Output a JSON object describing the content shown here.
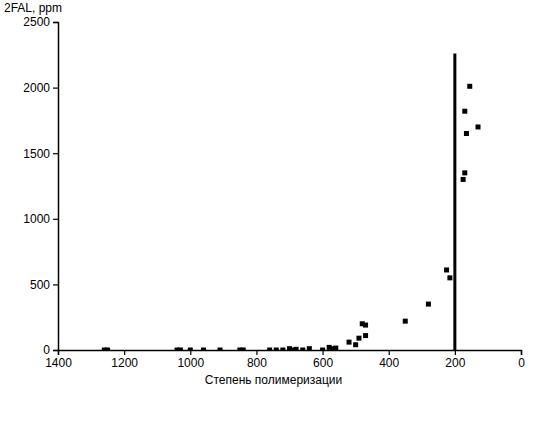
{
  "chart_data": {
    "type": "scatter",
    "x_label": "Степень полимеризации",
    "y_label": "2FAL, ppm",
    "x": [
      1260,
      1250,
      1040,
      1030,
      1000,
      960,
      910,
      850,
      840,
      760,
      740,
      720,
      700,
      690,
      680,
      660,
      640,
      600,
      580,
      570,
      560,
      520,
      500,
      490,
      480,
      470,
      470,
      350,
      280,
      225,
      215,
      175,
      170,
      170,
      165,
      155,
      130
    ],
    "values": [
      0,
      0,
      0,
      0,
      0,
      0,
      0,
      0,
      0,
      0,
      0,
      0,
      10,
      0,
      5,
      0,
      10,
      0,
      20,
      10,
      15,
      60,
      40,
      90,
      200,
      110,
      190,
      220,
      350,
      610,
      550,
      1300,
      1350,
      1820,
      1650,
      2010,
      1700
    ],
    "color": "#000000",
    "marker": "square",
    "xlim": [
      1400,
      0
    ],
    "xticks": [
      1400,
      1200,
      1000,
      800,
      600,
      400,
      200,
      0
    ],
    "ylim": [
      0,
      2500
    ],
    "yticks": [
      0,
      500,
      1000,
      1500,
      2000,
      2500
    ],
    "vline": {
      "x": 200,
      "y": [
        0,
        2260
      ]
    }
  }
}
